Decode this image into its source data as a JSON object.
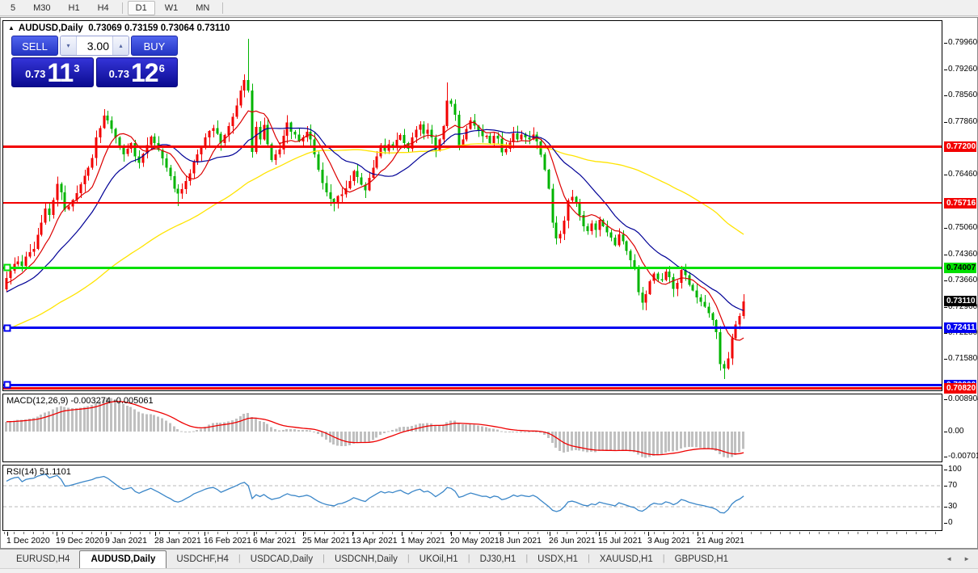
{
  "toolbar": {
    "timeframes": [
      "5",
      "M30",
      "H1",
      "H4",
      "D1",
      "W1",
      "MN"
    ],
    "active": "D1"
  },
  "header": {
    "symbol": "AUDUSD,Daily",
    "ohlc_text": "0.73069 0.73159 0.73064 0.73110"
  },
  "trade_panel": {
    "sell_label": "SELL",
    "buy_label": "BUY",
    "volume": "3.00",
    "sell_small": "0.73",
    "sell_big": "11",
    "sell_sup": "3",
    "buy_small": "0.73",
    "buy_big": "12",
    "buy_sup": "6"
  },
  "price_axis": {
    "ticks": [
      0.7996,
      0.7926,
      0.7856,
      0.7786,
      0.7646,
      0.7506,
      0.7436,
      0.7366,
      0.7296,
      0.7228,
      0.7158
    ],
    "current_price": {
      "value": 0.7311,
      "label": "0.73110",
      "bg": "#000000",
      "fg": "#ffffff"
    }
  },
  "macd": {
    "label": "MACD(12,26,9) -0.003274 -0.005061",
    "fast": 12,
    "slow": 26,
    "signal": 9,
    "value": -0.003274,
    "signal_value": -0.005061,
    "axis": [
      {
        "label": "0.008904",
        "value": 0.008904
      },
      {
        "label": "0.00",
        "value": 0
      },
      {
        "label": "-0.007013",
        "value": -0.007013
      }
    ],
    "bar_color": "#c0c0c0",
    "line_color": "#ee0000"
  },
  "rsi": {
    "label": "RSI(14) 51.1101",
    "period": 14,
    "value": 51.1101,
    "axis": [
      {
        "label": "100",
        "value": 100
      },
      {
        "label": "70",
        "value": 70
      },
      {
        "label": "30",
        "value": 30
      },
      {
        "label": "0",
        "value": 0
      }
    ],
    "guide_levels": [
      70,
      30
    ],
    "line_color": "#3a86c8"
  },
  "tabs": {
    "items": [
      "EURUSD,H4",
      "AUDUSD,Daily",
      "USDCHF,H4",
      "USDCAD,Daily",
      "USDCNH,Daily",
      "UKOil,H1",
      "DJ30,H1",
      "USDX,H1",
      "XAUUSD,H1",
      "GBPUSD,H1"
    ],
    "active": "AUDUSD,Daily"
  },
  "chart_data": {
    "type": "candlestick",
    "symbol": "AUDUSD",
    "timeframe": "Daily",
    "up_color": "#f20000",
    "down_color": "#00b400",
    "x_labels": [
      "1 Dec 2020",
      "19 Dec 2020",
      "9 Jan 2021",
      "28 Jan 2021",
      "16 Feb 2021",
      "6 Mar 2021",
      "25 Mar 2021",
      "13 Apr 2021",
      "1 May 2021",
      "20 May 2021",
      "8 Jun 2021",
      "26 Jun 2021",
      "15 Jul 2021",
      "3 Aug 2021",
      "21 Aug 2021"
    ],
    "price_top": 0.8049,
    "price_bottom": 0.7076,
    "first_open": 0.7343,
    "closes": [
      0.7373,
      0.7392,
      0.741,
      0.7417,
      0.7405,
      0.743,
      0.7442,
      0.745,
      0.7488,
      0.752,
      0.7557,
      0.754,
      0.758,
      0.7622,
      0.76,
      0.7555,
      0.7562,
      0.758,
      0.7598,
      0.7621,
      0.7644,
      0.7665,
      0.7691,
      0.7745,
      0.777,
      0.7803,
      0.779,
      0.7768,
      0.7745,
      0.772,
      0.7701,
      0.7715,
      0.773,
      0.7695,
      0.7678,
      0.7702,
      0.7725,
      0.7748,
      0.773,
      0.7712,
      0.769,
      0.7665,
      0.7643,
      0.761,
      0.7597,
      0.7608,
      0.763,
      0.765,
      0.768,
      0.77,
      0.772,
      0.7745,
      0.7762,
      0.777,
      0.7755,
      0.773,
      0.7752,
      0.7775,
      0.78,
      0.783,
      0.787,
      0.7897,
      0.787,
      0.7707,
      0.7773,
      0.774,
      0.7779,
      0.7727,
      0.7685,
      0.77,
      0.7713,
      0.775,
      0.7785,
      0.776,
      0.7753,
      0.7735,
      0.7745,
      0.776,
      0.774,
      0.77,
      0.766,
      0.7625,
      0.76,
      0.7583,
      0.757,
      0.759,
      0.7595,
      0.7611,
      0.763,
      0.7657,
      0.764,
      0.762,
      0.7605,
      0.7638,
      0.7665,
      0.7695,
      0.7725,
      0.771,
      0.7727,
      0.7718,
      0.7739,
      0.7752,
      0.773,
      0.7715,
      0.7745,
      0.7766,
      0.778,
      0.7755,
      0.7766,
      0.7745,
      0.7711,
      0.774,
      0.7775,
      0.7843,
      0.7834,
      0.7805,
      0.7725,
      0.774,
      0.7768,
      0.779,
      0.7776,
      0.7762,
      0.7748,
      0.775,
      0.773,
      0.775,
      0.7742,
      0.7706,
      0.7715,
      0.7732,
      0.7756,
      0.774,
      0.7753,
      0.7745,
      0.774,
      0.7753,
      0.7735,
      0.77,
      0.766,
      0.761,
      0.752,
      0.7478,
      0.749,
      0.7525,
      0.7579,
      0.7588,
      0.757,
      0.754,
      0.751,
      0.7497,
      0.7517,
      0.75,
      0.7527,
      0.751,
      0.7494,
      0.748,
      0.746,
      0.7489,
      0.747,
      0.7445,
      0.742,
      0.7401,
      0.7335,
      0.7308,
      0.733,
      0.7365,
      0.7385,
      0.737,
      0.7368,
      0.739,
      0.7375,
      0.7344,
      0.736,
      0.7394,
      0.738,
      0.7355,
      0.734,
      0.7322,
      0.731,
      0.7297,
      0.728,
      0.7262,
      0.723,
      0.7145,
      0.7133,
      0.716,
      0.7214,
      0.725,
      0.7272,
      0.7311
    ],
    "wick_overrides": {
      "25": {
        "high": 0.782
      },
      "44": {
        "low": 0.7564
      },
      "62": {
        "high": 0.8007
      },
      "63": {
        "low": 0.7692
      },
      "83": {
        "low": 0.7563
      },
      "113": {
        "high": 0.7891
      },
      "141": {
        "low": 0.7462
      },
      "163": {
        "low": 0.7289
      },
      "183": {
        "low": 0.7128
      },
      "184": {
        "low": 0.7106
      }
    },
    "history_seed": {
      "start": 0.7055,
      "step": 0.0004,
      "wiggle": 0.0013,
      "count": 80
    },
    "moving_averages": [
      {
        "period": 70,
        "color": "#ffe400",
        "width": 1.3
      },
      {
        "period": 20,
        "color": "#000096",
        "width": 1.2
      },
      {
        "period": 8,
        "color": "#dc0000",
        "width": 1.2
      }
    ],
    "levels": [
      {
        "price": 0.772,
        "label": "0.77200",
        "color": "#f20000",
        "text": "#ffffff",
        "thickness": 3,
        "marker": false
      },
      {
        "price": 0.75716,
        "label": "0.75716",
        "color": "#f20000",
        "text": "#ffffff",
        "thickness": 2,
        "marker": false
      },
      {
        "price": 0.74007,
        "label": "0.74007",
        "color": "#00e000",
        "text": "#000000",
        "thickness": 3,
        "marker": true
      },
      {
        "price": 0.72411,
        "label": "0.72411",
        "color": "#0000f0",
        "text": "#ffffff",
        "thickness": 3,
        "marker": true
      },
      {
        "price": 0.709,
        "label": "0.70900",
        "color": "#0000f0",
        "text": "#ffffff",
        "thickness": 3,
        "marker": true
      },
      {
        "price": 0.7082,
        "label": "0.70820",
        "color": "#f20000",
        "text": "#ffffff",
        "thickness": 3,
        "marker": false
      }
    ]
  }
}
